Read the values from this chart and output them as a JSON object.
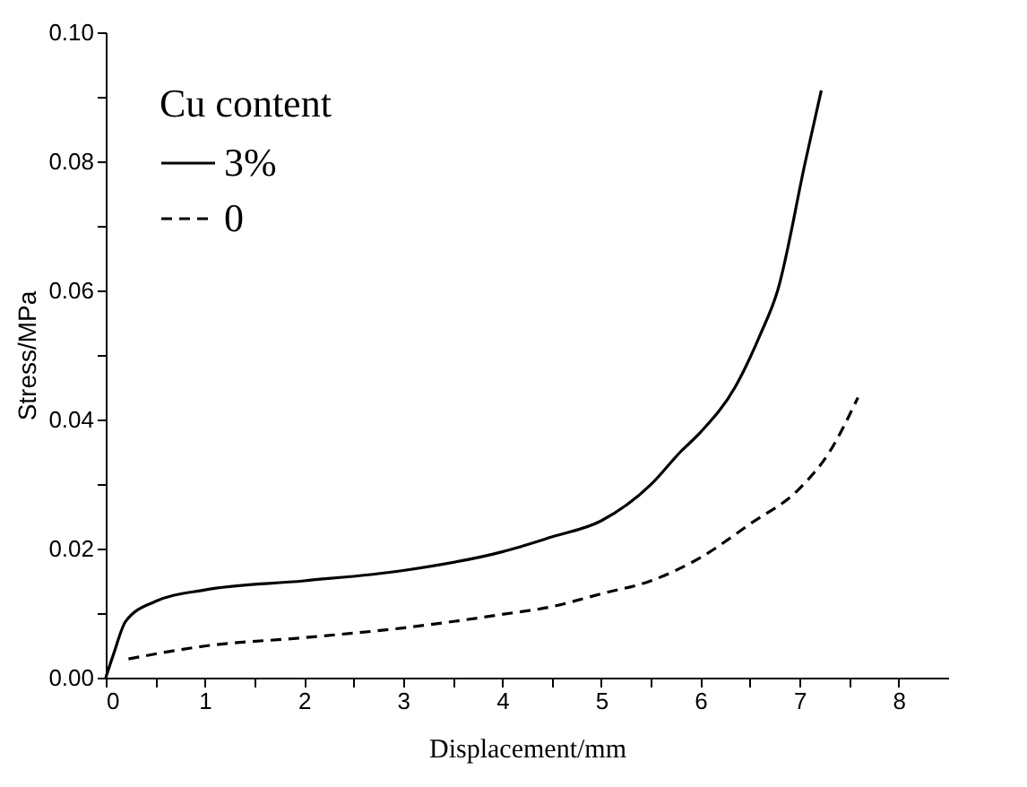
{
  "chart_data": {
    "type": "line",
    "xlabel": "Displacement/mm",
    "ylabel": "Stress/MPa",
    "legend_title": "Cu content",
    "legend": "top left",
    "grid": false,
    "marker": "none",
    "xlim": [
      0,
      8.5
    ],
    "ylim": [
      0,
      0.1
    ],
    "xticks": [
      0,
      {
        "value": 0.5,
        "label": null
      },
      1,
      {
        "value": 1.5,
        "label": null
      },
      2,
      {
        "value": 2.5,
        "label": null
      },
      3,
      {
        "value": 3.5,
        "label": null
      },
      4,
      {
        "value": 4.5,
        "label": null
      },
      5,
      {
        "value": 5.5,
        "label": null
      },
      6,
      {
        "value": 6.5,
        "label": null
      },
      7,
      {
        "value": 7.5,
        "label": null
      },
      8
    ],
    "yticks": [
      {
        "value": 0,
        "label": "0.00"
      },
      {
        "value": 0.01,
        "label": null
      },
      {
        "value": 0.02,
        "label": "0.02"
      },
      {
        "value": 0.03,
        "label": null
      },
      {
        "value": 0.04,
        "label": "0.04"
      },
      {
        "value": 0.05,
        "label": null
      },
      {
        "value": 0.06,
        "label": "0.06"
      },
      {
        "value": 0.07,
        "label": null
      },
      {
        "value": 0.08,
        "label": "0.08"
      },
      {
        "value": 0.09,
        "label": null
      },
      {
        "value": 0.1,
        "label": "0.10"
      }
    ],
    "series": [
      {
        "name": "3%",
        "color": "#000000",
        "line_style": "solid",
        "x": [
          0,
          0.08,
          0.2,
          0.5,
          1,
          2,
          3,
          4,
          4.5,
          5,
          5.5,
          5.8,
          6,
          6.35,
          6.6,
          6.78,
          7.06,
          7.22
        ],
        "values": [
          0,
          0.0037,
          0.0087,
          0.0118,
          0.0136,
          0.015,
          0.0166,
          0.0195,
          0.0218,
          0.0243,
          0.0299,
          0.035,
          0.038,
          0.045,
          0.053,
          0.06,
          0.08,
          0.091
        ]
      },
      {
        "name": "0",
        "color": "#000000",
        "line_style": "dashed",
        "x": [
          0.23,
          1,
          2,
          3,
          4,
          4.5,
          5,
          5.5,
          6,
          6.5,
          7,
          7.3,
          7.59
        ],
        "values": [
          0.0029,
          0.0049,
          0.0062,
          0.0077,
          0.0098,
          0.011,
          0.013,
          0.015,
          0.0186,
          0.0238,
          0.0293,
          0.0349,
          0.0434
        ]
      }
    ]
  }
}
